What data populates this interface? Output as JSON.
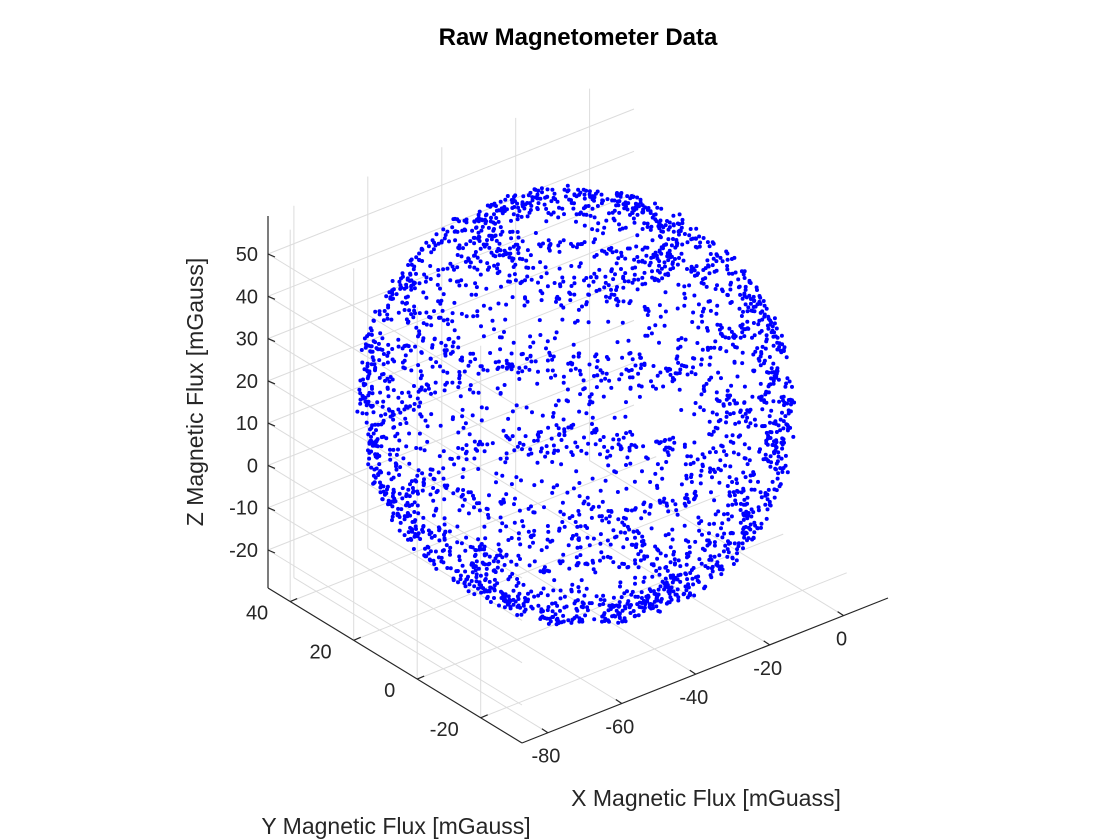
{
  "chart_data": {
    "type": "scatter",
    "title": "Raw Magnetometer Data",
    "xlabel": "X Magnetic Flux [mGuass]",
    "ylabel": "Y Magnetic Flux [mGauss]",
    "zlabel": "Z Magnetic Flux [mGauss]",
    "x_ticks": [
      "-80",
      "-60",
      "-40",
      "-20",
      "0"
    ],
    "y_ticks": [
      "-20",
      "0",
      "20",
      "40"
    ],
    "z_ticks": [
      "-20",
      "-10",
      "0",
      "10",
      "20",
      "30",
      "40",
      "50"
    ],
    "xlim": [
      -87,
      12
    ],
    "ylim": [
      -33,
      47
    ],
    "zlim": [
      -29,
      59
    ],
    "grid": true,
    "marker_color": "#0000ff",
    "series": [
      {
        "shape": "sphere-shell",
        "point_count": 3000,
        "center": [
          -37.5,
          7.5,
          15
        ],
        "radius": 44,
        "note_units": "mGauss"
      }
    ]
  },
  "colors": {
    "marker": "#0000ff",
    "axis": "#262626",
    "grid": "#dcdcdc",
    "background": "#ffffff"
  }
}
